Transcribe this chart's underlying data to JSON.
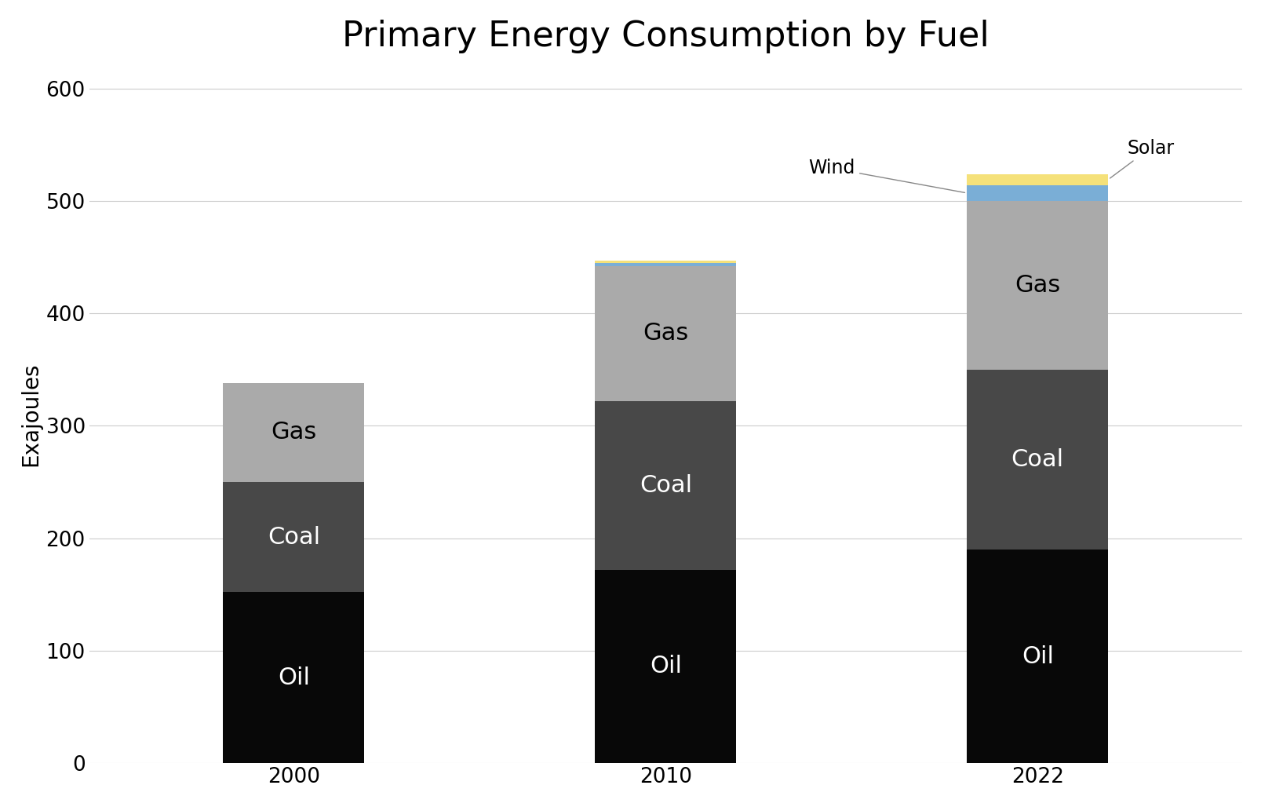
{
  "title": "Primary Energy Consumption by Fuel",
  "years": [
    "2000",
    "2010",
    "2022"
  ],
  "fuels": [
    "Oil",
    "Coal",
    "Gas",
    "Wind",
    "Solar"
  ],
  "values": {
    "2000": [
      152,
      98,
      88,
      0,
      0
    ],
    "2010": [
      172,
      150,
      120,
      3,
      2
    ],
    "2022": [
      190,
      160,
      150,
      14,
      10
    ]
  },
  "colors": {
    "Oil": "#080808",
    "Coal": "#484848",
    "Gas": "#aaaaaa",
    "Wind": "#7aaed6",
    "Solar": "#f5e17a"
  },
  "ylabel": "Exajoules",
  "ylim": [
    0,
    620
  ],
  "yticks": [
    0,
    100,
    200,
    300,
    400,
    500,
    600
  ],
  "bar_width": 0.38,
  "x_positions": [
    0,
    1,
    2
  ],
  "background_color": "#ffffff",
  "title_fontsize": 32,
  "label_fontsize": 20,
  "tick_fontsize": 19,
  "bar_label_fontsize": 22,
  "annotation_fontsize": 17
}
